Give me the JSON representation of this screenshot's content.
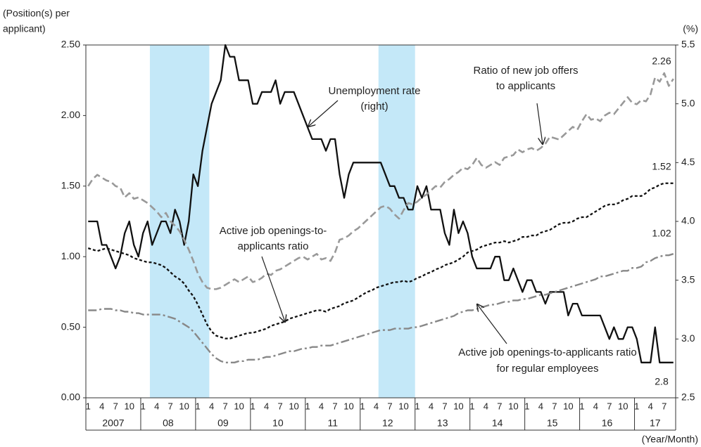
{
  "chart_data": {
    "type": "line",
    "y_axis_label_lines": [
      "(Position(s) per",
      "applicant)"
    ],
    "y2_axis_label": "(%)",
    "x_axis_label": "(Year/Month)",
    "categories": [
      "1",
      null,
      null,
      "4",
      null,
      null,
      "7",
      null,
      null,
      "10",
      null,
      null,
      "1",
      null,
      null,
      "4",
      null,
      null,
      "7",
      null,
      null,
      "10",
      null,
      null,
      "1",
      null,
      null,
      "4",
      null,
      null,
      "7",
      null,
      null,
      "10",
      null,
      null,
      "1",
      null,
      null,
      "4",
      null,
      null,
      "7",
      null,
      null,
      "10",
      null,
      null,
      "1",
      null,
      null,
      "4",
      null,
      null,
      "7",
      null,
      null,
      "10",
      null,
      null,
      "1",
      null,
      null,
      "4",
      null,
      null,
      "7",
      null,
      null,
      "10",
      null,
      null,
      "1",
      null,
      null,
      "4",
      null,
      null,
      "7",
      null,
      null,
      "10",
      null,
      null,
      "1",
      null,
      null,
      "4",
      null,
      null,
      "7",
      null,
      null,
      "10",
      null,
      null,
      "1",
      null,
      null,
      "4",
      null,
      null,
      "7",
      null,
      null,
      "10",
      null,
      null,
      "1",
      null,
      null,
      "4",
      null,
      null,
      "7",
      null,
      null,
      "10",
      null,
      null,
      "1",
      null,
      null,
      "4",
      null,
      null,
      "7",
      null,
      null
    ],
    "year_labels": [
      "2007",
      "08",
      "09",
      "10",
      "11",
      "12",
      "13",
      "14",
      "15",
      "16",
      "17"
    ],
    "shaded_periods": [
      [
        14,
        27
      ],
      [
        64,
        72
      ]
    ],
    "shade_color": "#c4e8f8",
    "ylim": [
      0,
      2.5
    ],
    "yticks": [
      {
        "value": 0,
        "label": "0.00"
      },
      {
        "value": 0.5,
        "label": "0.50"
      },
      {
        "value": 1,
        "label": "1.00"
      },
      {
        "value": 1.5,
        "label": "1.50"
      },
      {
        "value": 2,
        "label": "2.00"
      },
      {
        "value": 2.5,
        "label": "2.50"
      }
    ],
    "y2lim": [
      2.5,
      5.5
    ],
    "y2ticks": [
      2.5,
      {
        "value": 3,
        "label": "3.0"
      },
      3.5,
      {
        "value": 4,
        "label": "4.0"
      },
      4.5,
      {
        "value": 5,
        "label": "5.0"
      },
      5.5
    ],
    "series": [
      {
        "label_lines": [
          "Unemployment rate",
          "(right)"
        ],
        "axis": "y2",
        "color": "#111111",
        "style": "solid",
        "end_label": "2.8",
        "values": [
          4.0,
          4.0,
          4.0,
          3.8,
          3.8,
          3.7,
          3.6,
          3.7,
          3.9,
          4.0,
          3.8,
          3.7,
          3.9,
          4.0,
          3.8,
          3.9,
          4.0,
          4.0,
          3.9,
          4.1,
          4.0,
          3.8,
          4.0,
          4.4,
          4.3,
          4.6,
          4.8,
          5.0,
          5.1,
          5.2,
          5.5,
          5.4,
          5.4,
          5.2,
          5.2,
          5.2,
          5.0,
          5.0,
          5.1,
          5.1,
          5.1,
          5.2,
          5.0,
          5.1,
          5.1,
          5.1,
          5.0,
          4.9,
          4.8,
          4.7,
          4.7,
          4.7,
          4.6,
          4.7,
          4.7,
          4.4,
          4.2,
          4.4,
          4.5,
          4.5,
          4.5,
          4.5,
          4.5,
          4.5,
          4.5,
          4.4,
          4.3,
          4.3,
          4.2,
          4.2,
          4.1,
          4.1,
          4.3,
          4.2,
          4.3,
          4.1,
          4.1,
          4.1,
          3.9,
          3.8,
          4.1,
          3.9,
          4.0,
          3.9,
          3.7,
          3.6,
          3.6,
          3.6,
          3.6,
          3.7,
          3.7,
          3.5,
          3.5,
          3.6,
          3.5,
          3.4,
          3.5,
          3.5,
          3.4,
          3.4,
          3.3,
          3.4,
          3.4,
          3.4,
          3.4,
          3.2,
          3.3,
          3.3,
          3.2,
          3.2,
          3.2,
          3.2,
          3.2,
          3.1,
          3.0,
          3.1,
          3.0,
          3.0,
          3.1,
          3.1,
          3.0,
          2.8,
          2.8,
          2.8,
          3.1,
          2.8,
          2.8,
          2.8,
          2.8
        ]
      },
      {
        "label_lines": [
          "Ratio of new job offers",
          "to applicants"
        ],
        "color": "#999999",
        "style": "dashed",
        "end_label": "2.26",
        "values": [
          1.5,
          1.55,
          1.58,
          1.56,
          1.54,
          1.53,
          1.5,
          1.49,
          1.42,
          1.45,
          1.41,
          1.42,
          1.4,
          1.38,
          1.35,
          1.32,
          1.28,
          1.31,
          1.25,
          1.22,
          1.18,
          1.12,
          1.05,
          0.97,
          0.88,
          0.82,
          0.78,
          0.77,
          0.77,
          0.78,
          0.8,
          0.82,
          0.84,
          0.82,
          0.84,
          0.86,
          0.82,
          0.83,
          0.85,
          0.88,
          0.87,
          0.9,
          0.91,
          0.93,
          0.95,
          0.97,
          0.99,
          1.0,
          0.98,
          1.0,
          1.02,
          0.98,
          0.99,
          0.97,
          1.03,
          1.12,
          1.13,
          1.15,
          1.18,
          1.2,
          1.23,
          1.26,
          1.29,
          1.32,
          1.35,
          1.36,
          1.34,
          1.3,
          1.27,
          1.33,
          1.38,
          1.37,
          1.39,
          1.42,
          1.44,
          1.47,
          1.5,
          1.49,
          1.53,
          1.55,
          1.58,
          1.6,
          1.63,
          1.62,
          1.65,
          1.7,
          1.65,
          1.63,
          1.65,
          1.67,
          1.65,
          1.7,
          1.71,
          1.72,
          1.76,
          1.74,
          1.76,
          1.77,
          1.75,
          1.77,
          1.8,
          1.85,
          1.84,
          1.83,
          1.86,
          1.89,
          1.92,
          1.9,
          1.96,
          2.01,
          1.97,
          1.98,
          1.96,
          2.0,
          2.02,
          2.01,
          2.05,
          2.09,
          2.13,
          2.09,
          2.08,
          2.11,
          2.1,
          2.15,
          2.27,
          2.24,
          2.3,
          2.21,
          2.26
        ]
      },
      {
        "label_lines": [
          "Active job openings-to-",
          "applicants ratio"
        ],
        "color": "#111111",
        "style": "dotted",
        "end_label": "1.52",
        "values": [
          1.06,
          1.05,
          1.04,
          1.05,
          1.06,
          1.05,
          1.04,
          1.03,
          1.02,
          1.01,
          0.99,
          0.98,
          0.97,
          0.96,
          0.96,
          0.95,
          0.94,
          0.92,
          0.89,
          0.86,
          0.84,
          0.81,
          0.76,
          0.72,
          0.66,
          0.59,
          0.52,
          0.47,
          0.44,
          0.43,
          0.42,
          0.42,
          0.43,
          0.44,
          0.45,
          0.46,
          0.46,
          0.47,
          0.48,
          0.49,
          0.51,
          0.52,
          0.53,
          0.54,
          0.56,
          0.57,
          0.58,
          0.59,
          0.6,
          0.61,
          0.62,
          0.62,
          0.61,
          0.63,
          0.64,
          0.65,
          0.67,
          0.68,
          0.69,
          0.71,
          0.73,
          0.75,
          0.76,
          0.78,
          0.79,
          0.8,
          0.81,
          0.82,
          0.82,
          0.83,
          0.82,
          0.83,
          0.85,
          0.86,
          0.88,
          0.89,
          0.91,
          0.92,
          0.94,
          0.95,
          0.96,
          0.98,
          1.0,
          1.03,
          1.04,
          1.05,
          1.07,
          1.08,
          1.09,
          1.1,
          1.1,
          1.11,
          1.1,
          1.11,
          1.12,
          1.14,
          1.14,
          1.15,
          1.15,
          1.17,
          1.18,
          1.19,
          1.21,
          1.23,
          1.24,
          1.24,
          1.25,
          1.27,
          1.28,
          1.28,
          1.3,
          1.32,
          1.34,
          1.36,
          1.37,
          1.37,
          1.38,
          1.4,
          1.41,
          1.43,
          1.43,
          1.43,
          1.45,
          1.48,
          1.49,
          1.51,
          1.52,
          1.52,
          1.52
        ]
      },
      {
        "label_lines": [
          "Active job openings-to-applicants ratio",
          "for regular employees"
        ],
        "color": "#888888",
        "style": "dashdot",
        "end_label": "1.02",
        "values": [
          0.62,
          0.62,
          0.62,
          0.63,
          0.63,
          0.63,
          0.62,
          0.62,
          0.61,
          0.61,
          0.6,
          0.6,
          0.59,
          0.59,
          0.59,
          0.59,
          0.59,
          0.58,
          0.57,
          0.56,
          0.54,
          0.52,
          0.5,
          0.47,
          0.43,
          0.39,
          0.35,
          0.31,
          0.28,
          0.26,
          0.25,
          0.25,
          0.25,
          0.26,
          0.26,
          0.27,
          0.27,
          0.27,
          0.28,
          0.29,
          0.29,
          0.3,
          0.31,
          0.32,
          0.33,
          0.33,
          0.34,
          0.35,
          0.35,
          0.36,
          0.36,
          0.37,
          0.37,
          0.37,
          0.38,
          0.39,
          0.4,
          0.41,
          0.42,
          0.43,
          0.44,
          0.45,
          0.46,
          0.47,
          0.48,
          0.48,
          0.48,
          0.49,
          0.49,
          0.49,
          0.49,
          0.5,
          0.5,
          0.51,
          0.52,
          0.53,
          0.54,
          0.55,
          0.56,
          0.57,
          0.58,
          0.6,
          0.61,
          0.62,
          0.62,
          0.63,
          0.64,
          0.65,
          0.66,
          0.66,
          0.67,
          0.68,
          0.68,
          0.69,
          0.69,
          0.7,
          0.7,
          0.71,
          0.72,
          0.73,
          0.73,
          0.74,
          0.75,
          0.76,
          0.77,
          0.78,
          0.79,
          0.8,
          0.81,
          0.82,
          0.83,
          0.84,
          0.86,
          0.86,
          0.87,
          0.88,
          0.89,
          0.9,
          0.9,
          0.92,
          0.92,
          0.93,
          0.96,
          0.97,
          0.99,
          1.0,
          1.01,
          1.01,
          1.02
        ]
      }
    ]
  }
}
